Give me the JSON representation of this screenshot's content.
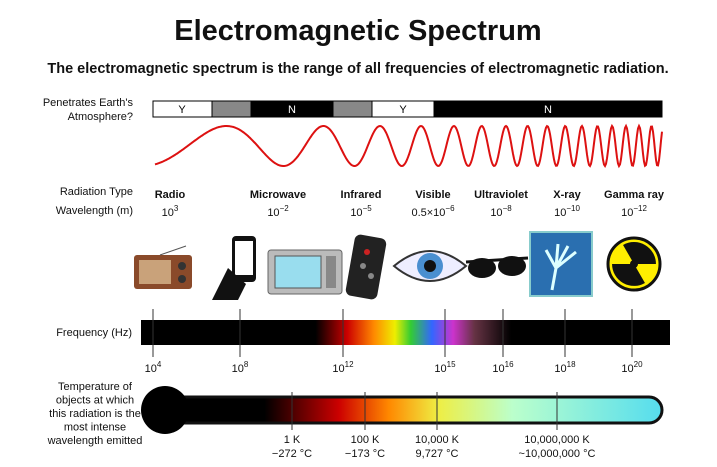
{
  "title": "Electromagnetic Spectrum",
  "subtitle": "The electromagnetic spectrum is the range of all frequencies of electromagnetic radiation.",
  "atmosphere": {
    "label_lines": [
      "Penetrates Earth's",
      "Atmosphere?"
    ],
    "segments": [
      "Y",
      "N",
      "Y",
      "N"
    ]
  },
  "radiation_type_label": "Radiation Type",
  "wavelength_label": "Wavelength (m)",
  "bands": [
    {
      "name": "Radio",
      "wavelength": {
        "text": "10",
        "sup": "3"
      }
    },
    {
      "name": "Microwave",
      "wavelength": {
        "text": "10",
        "sup": "−2"
      }
    },
    {
      "name": "Infrared",
      "wavelength": {
        "text": "10",
        "sup": "−5"
      }
    },
    {
      "name": "Visible",
      "wavelength": {
        "text": "0.5×10",
        "sup": "−6"
      }
    },
    {
      "name": "Ultraviolet",
      "wavelength": {
        "text": "10",
        "sup": "−8"
      }
    },
    {
      "name": "X-ray",
      "wavelength": {
        "text": "10",
        "sup": "−10"
      }
    },
    {
      "name": "Gamma ray",
      "wavelength": {
        "text": "10",
        "sup": "−12"
      }
    }
  ],
  "frequency": {
    "label": "Frequency (Hz)",
    "ticks": [
      {
        "text": "10",
        "sup": "4"
      },
      {
        "text": "10",
        "sup": "8"
      },
      {
        "text": "10",
        "sup": "12"
      },
      {
        "text": "10",
        "sup": "15"
      },
      {
        "text": "10",
        "sup": "16"
      },
      {
        "text": "10",
        "sup": "18"
      },
      {
        "text": "10",
        "sup": "20"
      }
    ]
  },
  "temperature": {
    "label_lines": [
      "Temperature of",
      "objects at which",
      "this radiation is the",
      "most intense",
      "wavelength emitted"
    ],
    "ticks": [
      {
        "kelvin": "1 K",
        "celsius": "−272 °C"
      },
      {
        "kelvin": "100 K",
        "celsius": "−173 °C"
      },
      {
        "kelvin": "10,000 K",
        "celsius": "9,727 °C"
      },
      {
        "kelvin": "10,000,000 K",
        "celsius": "~10,000,000 °C"
      }
    ]
  }
}
